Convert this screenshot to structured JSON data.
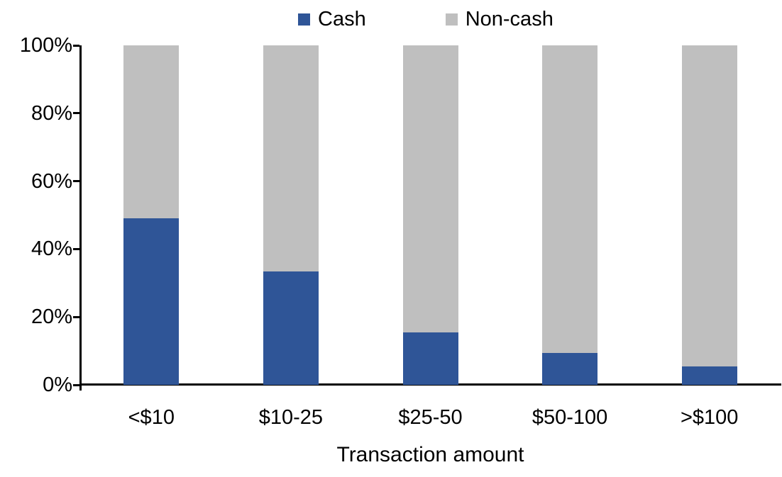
{
  "colors": {
    "cash": "#2F5597",
    "noncash": "#BFBFBF",
    "axis": "#000000",
    "background": "#FFFFFF"
  },
  "chart_data": {
    "type": "bar",
    "stacked": true,
    "percent": true,
    "title": "",
    "xlabel": "Transaction amount",
    "ylabel": "",
    "ylim": [
      0,
      100
    ],
    "yticks": [
      "0%",
      "20%",
      "40%",
      "60%",
      "80%",
      "100%"
    ],
    "grid": false,
    "legend_position": "top",
    "categories": [
      "<$10",
      "$10-25",
      "$25-50",
      "$50-100",
      ">$100"
    ],
    "series": [
      {
        "name": "Cash",
        "color": "#2F5597",
        "values": [
          49,
          33.5,
          15.5,
          9.5,
          5.5
        ]
      },
      {
        "name": "Non-cash",
        "color": "#BFBFBF",
        "values": [
          51,
          66.5,
          84.5,
          90.5,
          94.5
        ]
      }
    ]
  }
}
